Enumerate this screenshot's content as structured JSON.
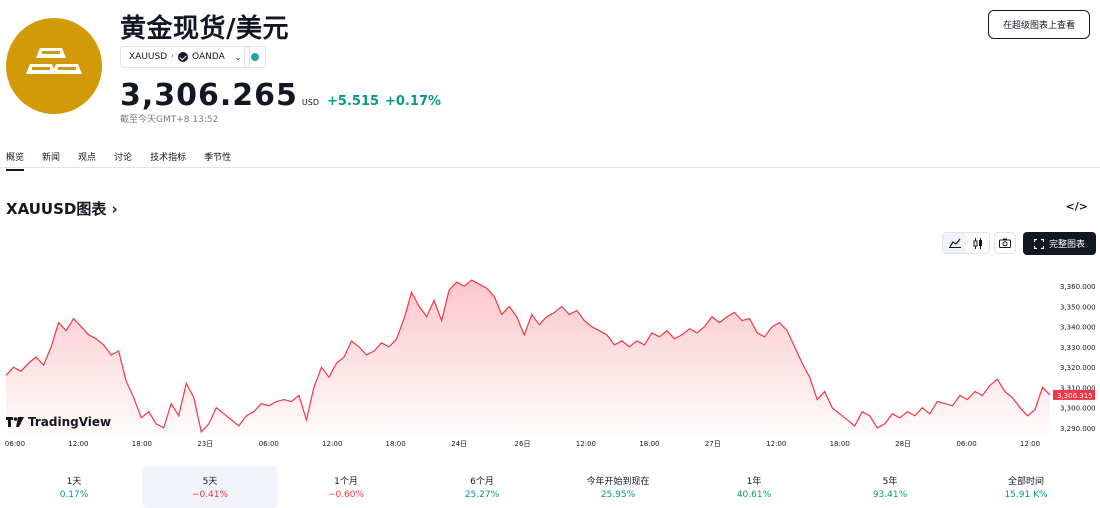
{
  "header": {
    "title": "黄金现货/美元",
    "symbol": "XAUUSD",
    "broker": "OANDA",
    "price": "3,306.265",
    "currency": "USD",
    "change_abs": "+5.515",
    "change_pct": "+0.17%",
    "as_of": "截至今天GMT+8 13:52",
    "view_button": "在超级图表上查看"
  },
  "tabs": [
    "概览",
    "新闻",
    "观点",
    "讨论",
    "技术指标",
    "季节性"
  ],
  "section": {
    "title": "XAUUSD图表 ›",
    "embed_icon": "</>",
    "full_chart_label": "完整图表",
    "brand": "TradingView"
  },
  "chart_data": {
    "type": "area",
    "x_ticks": [
      "06:00",
      "12:00",
      "18:00",
      "23日",
      "06:00",
      "12:00",
      "18:00",
      "24日",
      "26日",
      "12:00",
      "18:00",
      "27日",
      "12:00",
      "18:00",
      "28日",
      "06:00",
      "12:00"
    ],
    "y_ticks": [
      "3,360.000",
      "3,350.000",
      "3,340.000",
      "3,330.000",
      "3,320.000",
      "3,310.000",
      "3,300.000",
      "3,290.000"
    ],
    "ylim": [
      3287,
      3368
    ],
    "last_value_label": "3,306.315",
    "values": [
      3316,
      3320,
      3318,
      3322,
      3325,
      3321,
      3330,
      3342,
      3338,
      3344,
      3340,
      3336,
      3334,
      3331,
      3326,
      3328,
      3313,
      3305,
      3295,
      3298,
      3292,
      3290,
      3302,
      3296,
      3312,
      3305,
      3288,
      3292,
      3300,
      3297,
      3294,
      3291,
      3296,
      3298,
      3302,
      3301,
      3303,
      3304,
      3303,
      3306,
      3294,
      3310,
      3320,
      3315,
      3322,
      3325,
      3333,
      3330,
      3326,
      3328,
      3332,
      3330,
      3334,
      3344,
      3357,
      3350,
      3345,
      3353,
      3343,
      3358,
      3362,
      3360,
      3363,
      3361,
      3359,
      3355,
      3346,
      3350,
      3345,
      3336,
      3346,
      3341,
      3345,
      3347,
      3350,
      3346,
      3348,
      3343,
      3340,
      3338,
      3336,
      3331,
      3333,
      3330,
      3333,
      3331,
      3337,
      3335,
      3338,
      3334,
      3336,
      3339,
      3337,
      3340,
      3345,
      3342,
      3345,
      3347,
      3343,
      3344,
      3337,
      3335,
      3340,
      3342,
      3338,
      3330,
      3322,
      3315,
      3304,
      3308,
      3300,
      3297,
      3294,
      3291,
      3298,
      3296,
      3290,
      3292,
      3297,
      3295,
      3298,
      3296,
      3300,
      3297,
      3303,
      3302,
      3301,
      3306,
      3304,
      3308,
      3306,
      3311,
      3314,
      3308,
      3305,
      3300,
      3296,
      3299,
      3310,
      3306.315
    ]
  },
  "periods": [
    {
      "label": "1天",
      "value": "0.17%",
      "sign": "pos"
    },
    {
      "label": "5天",
      "value": "−0.41%",
      "sign": "neg"
    },
    {
      "label": "1个月",
      "value": "−0.60%",
      "sign": "neg"
    },
    {
      "label": "6个月",
      "value": "25.27%",
      "sign": "pos"
    },
    {
      "label": "今年开始到现在",
      "value": "25.95%",
      "sign": "pos"
    },
    {
      "label": "1年",
      "value": "40.61%",
      "sign": "pos"
    },
    {
      "label": "5年",
      "value": "93.41%",
      "sign": "pos"
    },
    {
      "label": "全部时间",
      "value": "15.91 K%",
      "sign": "pos"
    }
  ],
  "colors": {
    "brand_gold": "#d39a07",
    "line": "#f23645",
    "positive": "#089981",
    "negative": "#f23645"
  }
}
